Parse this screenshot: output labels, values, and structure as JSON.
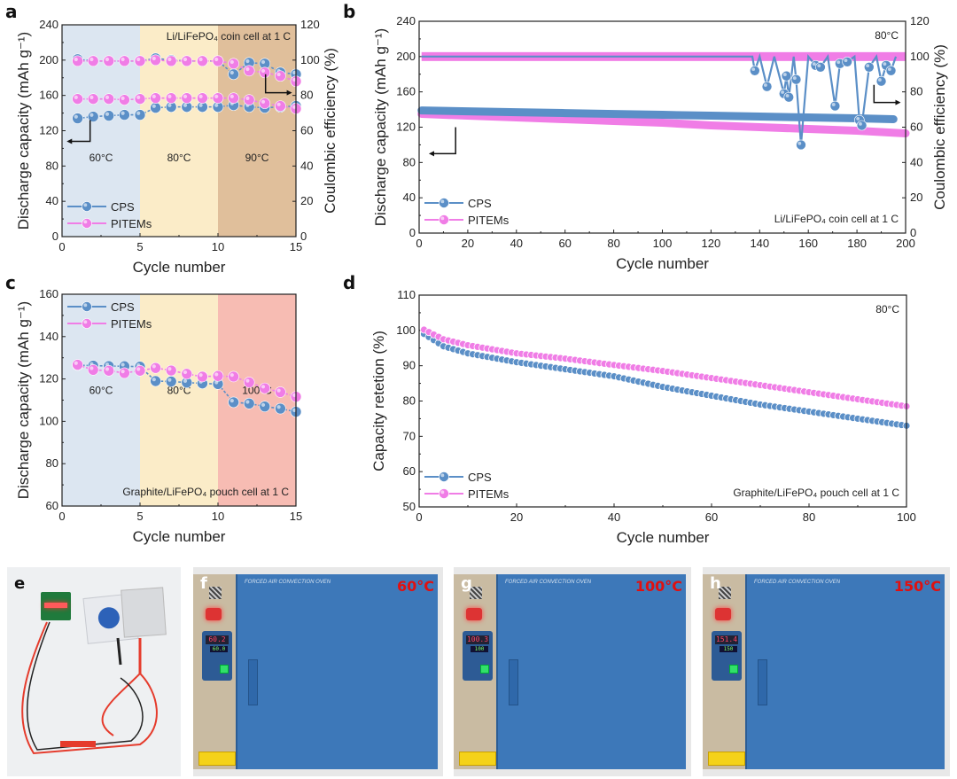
{
  "figure": {
    "panels": [
      "a",
      "b",
      "c",
      "d",
      "e",
      "f",
      "g",
      "h"
    ]
  },
  "series_styles": {
    "CPS": {
      "color": "#5b8fc7",
      "marker": "#4f86c2"
    },
    "PITEMs": {
      "color": "#f07de6",
      "marker": "#f27ae8"
    }
  },
  "chart_data": [
    {
      "panel": "a",
      "type": "line",
      "title": "",
      "xlabel": "Cycle number",
      "ylabel": "Discharge capacity (mAh g⁻¹)",
      "ylabel_right": "Coulombic efficiency (%)",
      "xlim": [
        0,
        15
      ],
      "ylim": [
        0,
        240
      ],
      "ylim_right": [
        0,
        120
      ],
      "xticks": [
        0,
        5,
        10,
        15
      ],
      "yticks": [
        0,
        40,
        80,
        120,
        160,
        200,
        240
      ],
      "yticks_right": [
        0,
        20,
        40,
        60,
        80,
        100,
        120
      ],
      "annotation": "Li/LiFePO₄ coin cell at 1 C",
      "regions": [
        {
          "from": 0,
          "to": 5,
          "label": "60°C",
          "color": "#dce6f1"
        },
        {
          "from": 5,
          "to": 10,
          "label": "80°C",
          "color": "#fbecc8"
        },
        {
          "from": 10,
          "to": 15,
          "label": "90°C",
          "color": "#e0bf9b"
        }
      ],
      "legend": [
        "CPS",
        "PITEMs"
      ],
      "legend_position": "bottom-left",
      "x": [
        1,
        2,
        3,
        4,
        5,
        6,
        7,
        8,
        9,
        10,
        11,
        12,
        13,
        14,
        15
      ],
      "series": [
        {
          "name": "CPS",
          "axis": "left",
          "values": [
            134,
            136,
            137,
            138,
            138,
            146,
            147,
            147,
            147,
            147,
            149,
            147,
            146,
            147,
            148
          ]
        },
        {
          "name": "PITEMs",
          "axis": "left",
          "values": [
            156,
            156,
            156,
            155,
            156,
            157,
            157,
            157,
            157,
            157,
            157,
            155,
            151,
            148,
            145
          ]
        },
        {
          "name": "CPS",
          "axis": "right",
          "values": [
            100.5,
            99.5,
            99.5,
            99.5,
            99.5,
            101,
            100,
            99.5,
            99.5,
            99.5,
            92,
            98.5,
            98,
            93,
            92
          ]
        },
        {
          "name": "PITEMs",
          "axis": "right",
          "values": [
            99.5,
            99.5,
            99.5,
            99.5,
            99.5,
            100,
            99.5,
            99.5,
            99.5,
            99.5,
            98,
            94,
            93,
            91,
            88
          ]
        }
      ]
    },
    {
      "panel": "b",
      "type": "line",
      "xlabel": "Cycle number",
      "ylabel": "Discharge capacity (mAh g⁻¹)",
      "ylabel_right": "Coulombic efficiency (%)",
      "xlim": [
        0,
        200
      ],
      "ylim": [
        0,
        240
      ],
      "ylim_right": [
        0,
        120
      ],
      "xticks": [
        0,
        20,
        40,
        60,
        80,
        100,
        120,
        140,
        160,
        180,
        200
      ],
      "yticks": [
        0,
        40,
        80,
        120,
        160,
        200,
        240
      ],
      "yticks_right": [
        0,
        20,
        40,
        60,
        80,
        100,
        120
      ],
      "annotation": "Li/LiFePO₄ coin cell at 1 C",
      "temperature_label": "80°C",
      "legend": [
        "CPS",
        "PITEMs"
      ],
      "legend_position": "bottom-left",
      "series": [
        {
          "name": "CPS",
          "axis": "left",
          "description": "capacity",
          "x": [
            1,
            20,
            40,
            60,
            80,
            100,
            120,
            140,
            160,
            180,
            195
          ],
          "values": [
            139,
            138,
            137,
            136,
            135,
            134,
            133,
            132,
            131,
            130,
            129
          ]
        },
        {
          "name": "PITEMs",
          "axis": "left",
          "description": "capacity",
          "x": [
            1,
            20,
            40,
            60,
            80,
            100,
            120,
            140,
            160,
            180,
            200
          ],
          "values": [
            135,
            133,
            131,
            129,
            127,
            125,
            122,
            120,
            118,
            116,
            113
          ]
        },
        {
          "name": "PITEMs",
          "axis": "right",
          "description": "coulombic efficiency",
          "x": [
            1,
            200
          ],
          "values": [
            100,
            100
          ]
        },
        {
          "name": "CPS",
          "axis": "right",
          "description": "coulombic efficiency with dips",
          "x": [
            1,
            137,
            138,
            140,
            143,
            146,
            150,
            151,
            152,
            154,
            155,
            157,
            160,
            163,
            165,
            168,
            171,
            173,
            176,
            179,
            181,
            182,
            185,
            188,
            190,
            192,
            194,
            196
          ],
          "values": [
            100,
            100,
            92,
            100,
            83,
            100,
            79,
            89,
            77,
            100,
            87,
            50,
            100,
            95,
            94,
            100,
            72,
            96,
            97,
            100,
            64,
            61,
            94,
            100,
            86,
            95,
            92,
            100
          ]
        }
      ]
    },
    {
      "panel": "c",
      "type": "line",
      "xlabel": "Cycle number",
      "ylabel": "Discharge capacity (mAh g⁻¹)",
      "xlim": [
        0,
        15
      ],
      "ylim": [
        60,
        160
      ],
      "xticks": [
        0,
        5,
        10,
        15
      ],
      "yticks": [
        60,
        80,
        100,
        120,
        140,
        160
      ],
      "annotation": "Graphite/LiFePO₄ pouch cell at 1 C",
      "regions": [
        {
          "from": 0,
          "to": 5,
          "label": "60°C",
          "color": "#dce6f1"
        },
        {
          "from": 5,
          "to": 10,
          "label": "80°C",
          "color": "#fbecc8"
        },
        {
          "from": 10,
          "to": 15,
          "label": "100°C",
          "color": "#f7bcb3"
        }
      ],
      "legend": [
        "CPS",
        "PITEMs"
      ],
      "legend_position": "top-left",
      "x": [
        1,
        2,
        3,
        4,
        5,
        6,
        7,
        8,
        9,
        10,
        11,
        12,
        13,
        14,
        15
      ],
      "series": [
        {
          "name": "CPS",
          "values": [
            126.5,
            126.3,
            126.1,
            126,
            125.8,
            119,
            118.8,
            118.3,
            117.9,
            117.6,
            109,
            108.4,
            107,
            106,
            104.5
          ]
        },
        {
          "name": "PITEMs",
          "values": [
            126.7,
            124.3,
            123.9,
            122.8,
            123.9,
            125.2,
            124,
            122.4,
            121.1,
            121.4,
            121.1,
            118.4,
            115.6,
            113.8,
            111.6
          ]
        }
      ]
    },
    {
      "panel": "d",
      "type": "line",
      "xlabel": "Cycle number",
      "ylabel": "Capacity retetion (%)",
      "xlim": [
        0,
        100
      ],
      "ylim": [
        50,
        110
      ],
      "xticks": [
        0,
        20,
        40,
        60,
        80,
        100
      ],
      "yticks": [
        50,
        60,
        70,
        80,
        90,
        100,
        110
      ],
      "annotation": "Graphite/LiFePO₄ pouch cell at 1 C",
      "temperature_label": "80°C",
      "legend": [
        "CPS",
        "PITEMs"
      ],
      "legend_position": "bottom-left",
      "series": [
        {
          "name": "CPS",
          "x": [
            1,
            5,
            10,
            20,
            30,
            40,
            50,
            60,
            70,
            80,
            90,
            100
          ],
          "values": [
            99,
            95.5,
            93.5,
            91,
            89,
            87,
            84,
            81.5,
            79,
            77,
            75,
            73
          ]
        },
        {
          "name": "PITEMs",
          "x": [
            1,
            5,
            10,
            20,
            30,
            40,
            50,
            60,
            70,
            80,
            90,
            100
          ],
          "values": [
            100.2,
            97.5,
            95.8,
            93.5,
            92,
            90.2,
            88.5,
            86.5,
            84.5,
            82.5,
            80.5,
            78.5
          ]
        }
      ]
    }
  ],
  "photos": {
    "e": {
      "letter": "e",
      "description": "pouch cell powering LED board"
    },
    "f": {
      "letter": "f",
      "temperature": "60°C",
      "display": "60.2",
      "sub": "60.0",
      "door_label": "FORCED AIR CONVECTION OVEN"
    },
    "g": {
      "letter": "g",
      "temperature": "100°C",
      "display": "100.3",
      "sub": "100",
      "door_label": "FORCED AIR CONVECTION OVEN"
    },
    "h": {
      "letter": "h",
      "temperature": "150°C",
      "display": "151.4",
      "sub": "150",
      "door_label": "FORCED AIR CONVECTION OVEN"
    }
  }
}
